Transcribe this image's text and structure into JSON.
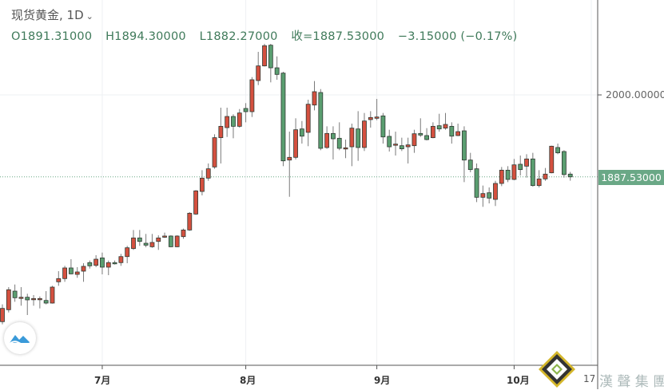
{
  "header": {
    "symbol": "现货黄金, 1D",
    "open": "O1891.31000",
    "high": "H1894.30000",
    "low": "L1882.27000",
    "close": "收=1887.53000",
    "change": "−3.15000 (−0.17%)"
  },
  "price_axis": {
    "label_2000": "2000.00000",
    "current_price": "1887.53000"
  },
  "time_axis": {
    "ticks": [
      "7月",
      "8月",
      "9月",
      "10月",
      "17"
    ]
  },
  "watermark": {
    "text": "漢 聲 集 團"
  },
  "colors": {
    "up": "#d4503f",
    "down": "#5a9e70",
    "badge": "#6aa886",
    "header_values": "#3f7a5a"
  },
  "logo_icon": "cloud-wave-icon",
  "chart_data": {
    "type": "candlestick",
    "title": "现货黄金, 1D",
    "xlabel": "",
    "ylabel": "",
    "ylim": [
      1660,
      2110
    ],
    "grid": true,
    "up_color": "red",
    "down_color": "green",
    "month_ticks": [
      {
        "label": "7月",
        "date": "07-01"
      },
      {
        "label": "8月",
        "date": "08-03"
      },
      {
        "label": "9月",
        "date": "09-01"
      },
      {
        "label": "10月",
        "date": "10-01"
      }
    ],
    "columns": [
      "date",
      "open",
      "high",
      "low",
      "close"
    ],
    "candles": [
      [
        "06-09",
        1688.8,
        1712.5,
        1685.1,
        1707.0
      ],
      [
        "06-10",
        1705.2,
        1736.2,
        1701.5,
        1732.6
      ],
      [
        "06-11",
        1730.7,
        1739.8,
        1716.1,
        1721.6
      ],
      [
        "06-12",
        1720.9,
        1736.2,
        1710.7,
        1722.3
      ],
      [
        "06-15",
        1722.3,
        1727.1,
        1697.9,
        1718.7
      ],
      [
        "06-16",
        1719.0,
        1725.3,
        1710.7,
        1720.5
      ],
      [
        "06-17",
        1719.0,
        1723.4,
        1707.0,
        1720.5
      ],
      [
        "06-18",
        1717.9,
        1730.7,
        1712.5,
        1714.3
      ],
      [
        "06-19",
        1714.3,
        1738.0,
        1713.6,
        1736.2
      ],
      [
        "06-22",
        1743.5,
        1758.1,
        1738.0,
        1747.9
      ],
      [
        "06-23",
        1747.9,
        1765.4,
        1743.5,
        1762.5
      ],
      [
        "06-24",
        1762.5,
        1774.5,
        1753.7,
        1754.4
      ],
      [
        "06-25",
        1753.7,
        1763.6,
        1749.0,
        1757.0
      ],
      [
        "06-26",
        1758.1,
        1769.0,
        1743.5,
        1764.7
      ],
      [
        "06-29",
        1769.8,
        1772.7,
        1761.7,
        1765.4
      ],
      [
        "06-30",
        1766.1,
        1780.0,
        1763.6,
        1774.5
      ],
      [
        "07-01",
        1776.3,
        1783.6,
        1753.7,
        1763.6
      ],
      [
        "07-02",
        1763.6,
        1772.7,
        1752.6,
        1769.8
      ],
      [
        "07-03",
        1769.8,
        1772.7,
        1767.2,
        1768.3
      ],
      [
        "07-06",
        1769.8,
        1781.8,
        1765.4,
        1778.1
      ],
      [
        "07-07",
        1778.1,
        1792.8,
        1769.0,
        1790.2
      ],
      [
        "07-08",
        1789.1,
        1814.6,
        1787.3,
        1803.7
      ],
      [
        "07-09",
        1803.7,
        1814.6,
        1792.8,
        1798.9
      ],
      [
        "07-10",
        1796.4,
        1809.2,
        1790.9,
        1793.8
      ],
      [
        "07-13",
        1791.6,
        1809.2,
        1790.2,
        1797.5
      ],
      [
        "07-14",
        1798.9,
        1807.3,
        1787.3,
        1803.7
      ],
      [
        "07-15",
        1804.8,
        1811.0,
        1803.7,
        1806.3
      ],
      [
        "07-16",
        1806.3,
        1807.3,
        1790.9,
        1791.6
      ],
      [
        "07-17",
        1791.6,
        1807.3,
        1790.9,
        1806.3
      ],
      [
        "07-20",
        1805.5,
        1816.5,
        1802.6,
        1814.6
      ],
      [
        "07-21",
        1814.6,
        1839.1,
        1813.5,
        1837.6
      ],
      [
        "07-22",
        1836.5,
        1869.4,
        1835.4,
        1868.3
      ],
      [
        "07-23",
        1867.5,
        1896.7,
        1862.1,
        1885.8
      ],
      [
        "07-24",
        1885.8,
        1905.9,
        1882.1,
        1898.6
      ],
      [
        "07-27",
        1901.1,
        1946.0,
        1898.6,
        1941.3
      ],
      [
        "07-28",
        1941.3,
        1982.5,
        1905.9,
        1956.9
      ],
      [
        "07-29",
        1955.1,
        1982.5,
        1942.3,
        1970.4
      ],
      [
        "07-30",
        1970.4,
        1973.4,
        1940.5,
        1956.9
      ],
      [
        "07-31",
        1956.9,
        1980.6,
        1955.1,
        1975.2
      ],
      [
        "08-03",
        1981.4,
        1988.7,
        1962.4,
        1977.0
      ],
      [
        "08-04",
        1977.0,
        2024.4,
        1969.7,
        2020.8
      ],
      [
        "08-05",
        2019.7,
        2059.1,
        2013.5,
        2039.8
      ],
      [
        "08-06",
        2039.8,
        2070.1,
        2039.0,
        2067.5
      ],
      [
        "08-07",
        2068.2,
        2070.1,
        2017.2,
        2037.2
      ],
      [
        "08-10",
        2037.2,
        2052.9,
        2020.8,
        2028.1
      ],
      [
        "08-11",
        2029.9,
        2031.7,
        1902.2,
        1909.5
      ],
      [
        "08-12",
        1910.6,
        1949.6,
        1860.2,
        1914.3
      ],
      [
        "08-13",
        1914.3,
        1967.9,
        1911.4,
        1952.2
      ],
      [
        "08-14",
        1953.3,
        1964.2,
        1933.2,
        1943.4
      ],
      [
        "08-17",
        1948.6,
        1993.4,
        1929.6,
        1987.2
      ],
      [
        "08-18",
        1986.1,
        2019.0,
        1978.8,
        2004.4
      ],
      [
        "08-19",
        2003.3,
        2008.0,
        1924.1,
        1926.7
      ],
      [
        "08-20",
        1927.8,
        1956.9,
        1926.0,
        1947.1
      ],
      [
        "08-21",
        1947.1,
        1956.9,
        1911.4,
        1939.8
      ],
      [
        "08-24",
        1940.5,
        1962.4,
        1924.1,
        1926.7
      ],
      [
        "08-25",
        1926.0,
        1938.7,
        1913.2,
        1927.4
      ],
      [
        "08-26",
        1928.8,
        1960.6,
        1902.2,
        1954.4
      ],
      [
        "08-27",
        1953.3,
        1977.7,
        1909.5,
        1927.8
      ],
      [
        "08-28",
        1927.8,
        1975.2,
        1923.0,
        1964.2
      ],
      [
        "08-31",
        1966.1,
        1977.7,
        1955.1,
        1969.0
      ],
      [
        "09-01",
        1967.9,
        1994.5,
        1965.3,
        1969.7
      ],
      [
        "09-02",
        1971.2,
        1975.2,
        1933.2,
        1942.3
      ],
      [
        "09-03",
        1943.1,
        1952.2,
        1922.3,
        1928.8
      ],
      [
        "09-04",
        1931.0,
        1949.6,
        1916.8,
        1932.5
      ],
      [
        "09-07",
        1930.3,
        1941.3,
        1923.0,
        1926.0
      ],
      [
        "09-08",
        1928.8,
        1941.3,
        1905.9,
        1931.4
      ],
      [
        "09-09",
        1930.3,
        1952.2,
        1920.5,
        1946.7
      ],
      [
        "09-10",
        1947.1,
        1967.9,
        1942.3,
        1944.9
      ],
      [
        "09-11",
        1944.2,
        1954.4,
        1937.6,
        1938.7
      ],
      [
        "09-14",
        1941.3,
        1962.4,
        1940.5,
        1956.9
      ],
      [
        "09-15",
        1957.7,
        1974.1,
        1949.6,
        1953.3
      ],
      [
        "09-16",
        1954.4,
        1975.2,
        1952.2,
        1959.5
      ],
      [
        "09-17",
        1956.9,
        1962.4,
        1933.2,
        1943.4
      ],
      [
        "09-18",
        1944.2,
        1960.6,
        1943.4,
        1949.6
      ],
      [
        "09-21",
        1950.7,
        1956.9,
        1880.3,
        1910.6
      ],
      [
        "09-22",
        1910.6,
        1920.5,
        1893.8,
        1897.5
      ],
      [
        "09-23",
        1898.6,
        1905.9,
        1852.9,
        1859.5
      ],
      [
        "09-24",
        1859.5,
        1875.6,
        1846.4,
        1864.6
      ],
      [
        "09-25",
        1865.7,
        1873.0,
        1851.1,
        1858.4
      ],
      [
        "09-28",
        1856.6,
        1882.1,
        1847.5,
        1878.5
      ],
      [
        "09-29",
        1878.5,
        1901.1,
        1874.8,
        1896.7
      ],
      [
        "09-30",
        1896.7,
        1902.2,
        1880.3,
        1884.0
      ],
      [
        "10-01",
        1884.0,
        1912.1,
        1882.9,
        1904.0
      ],
      [
        "10-02",
        1904.8,
        1916.8,
        1889.4,
        1897.5
      ],
      [
        "10-05",
        1902.2,
        1918.6,
        1886.5,
        1912.1
      ],
      [
        "10-06",
        1912.1,
        1920.5,
        1874.1,
        1875.6
      ],
      [
        "10-07",
        1875.6,
        1896.7,
        1873.0,
        1884.7
      ],
      [
        "10-08",
        1884.7,
        1899.7,
        1882.1,
        1891.3
      ],
      [
        "10-09",
        1893.1,
        1930.3,
        1892.4,
        1929.6
      ],
      [
        "10-12",
        1927.8,
        1933.2,
        1918.6,
        1920.5
      ],
      [
        "10-13",
        1922.3,
        1924.1,
        1886.5,
        1890.7
      ],
      [
        "10-14",
        1891.31,
        1894.3,
        1882.27,
        1887.53
      ]
    ]
  }
}
